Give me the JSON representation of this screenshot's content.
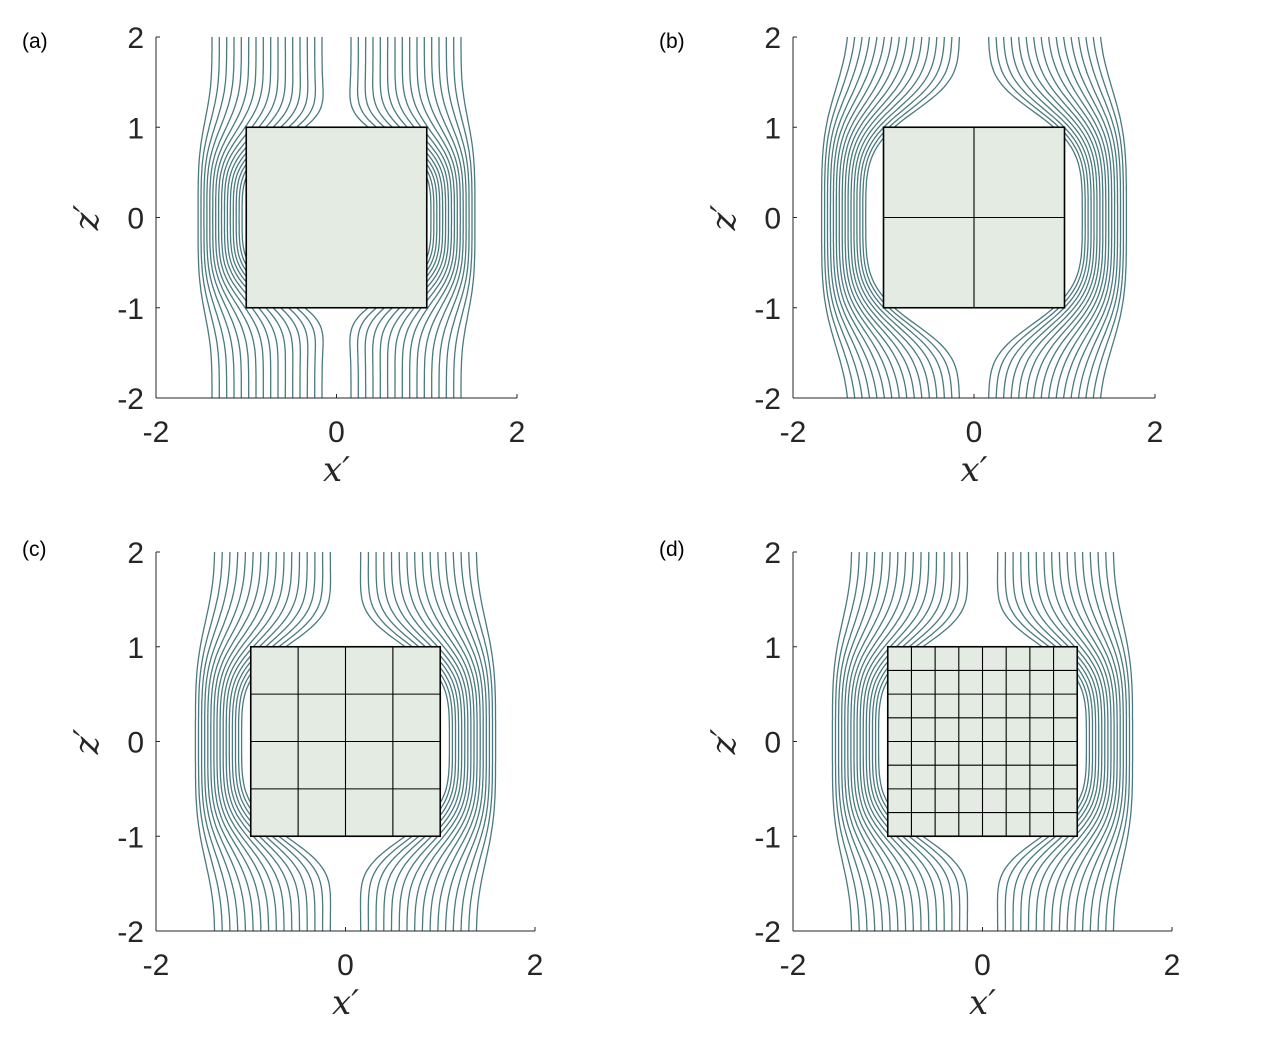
{
  "chart_data": [
    {
      "type": "line",
      "panel_label": "(a)",
      "xlabel": "x′",
      "ylabel": "z′",
      "xlim": [
        -2,
        2
      ],
      "ylim": [
        -2,
        2
      ],
      "xticks": [
        "-2",
        "0",
        "2"
      ],
      "yticks": [
        "-2",
        "-1",
        "0",
        "1",
        "2"
      ],
      "square": [
        -1,
        1
      ],
      "subdivisions": 1,
      "field_lines": 16,
      "cavity_halfwidth": 1.0,
      "cavity_halfheight": 1.0,
      "line_color": "#4a7a80",
      "fill_color": "#e3ebe3"
    },
    {
      "type": "line",
      "panel_label": "(b)",
      "xlabel": "x′",
      "ylabel": "z′",
      "xlim": [
        -2,
        2
      ],
      "ylim": [
        -2,
        2
      ],
      "xticks": [
        "-2",
        "0",
        "2"
      ],
      "yticks": [
        "-2",
        "-1",
        "0",
        "1",
        "2"
      ],
      "square": [
        -1,
        1
      ],
      "subdivisions": 2,
      "field_lines": 16,
      "cavity_halfwidth": 1.15,
      "cavity_halfheight": 1.38,
      "line_color": "#4a7a80",
      "fill_color": "#e3ebe3"
    },
    {
      "type": "line",
      "panel_label": "(c)",
      "xlabel": "x′",
      "ylabel": "z′",
      "xlim": [
        -2,
        2
      ],
      "ylim": [
        -2,
        2
      ],
      "xticks": [
        "-2",
        "0",
        "2"
      ],
      "yticks": [
        "-2",
        "-1",
        "0",
        "1",
        "2"
      ],
      "square": [
        -1,
        1
      ],
      "subdivisions": 4,
      "field_lines": 16,
      "cavity_halfwidth": 1.05,
      "cavity_halfheight": 1.2,
      "line_color": "#4a7a80",
      "fill_color": "#e3ebe3"
    },
    {
      "type": "line",
      "panel_label": "(d)",
      "xlabel": "x′",
      "ylabel": "z′",
      "xlim": [
        -2,
        2
      ],
      "ylim": [
        -2,
        2
      ],
      "xticks": [
        "-2",
        "0",
        "2"
      ],
      "yticks": [
        "-2",
        "-1",
        "0",
        "1",
        "2"
      ],
      "square": [
        -1,
        1
      ],
      "subdivisions": 8,
      "field_lines": 16,
      "cavity_halfwidth": 1.05,
      "cavity_halfheight": 1.2,
      "line_color": "#4a7a80",
      "fill_color": "#e3ebe3"
    }
  ]
}
